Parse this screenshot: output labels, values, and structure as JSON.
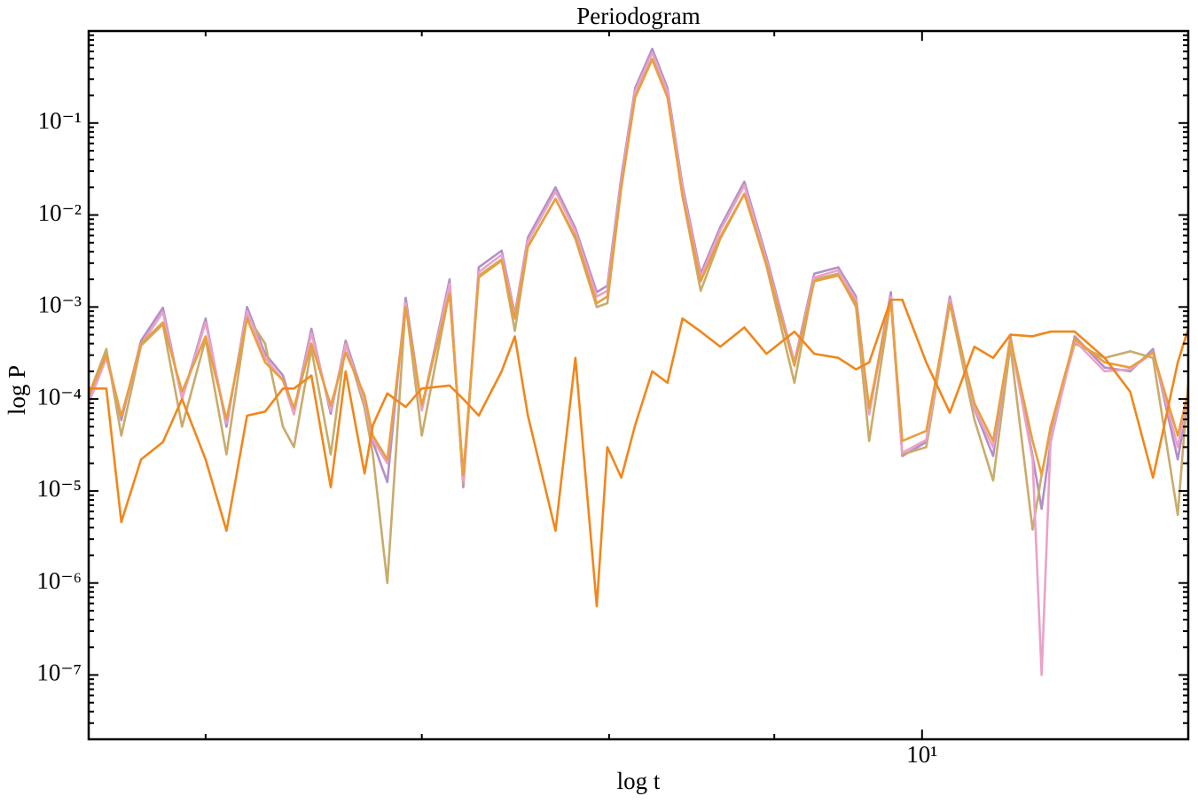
{
  "chart_data": {
    "type": "line",
    "title": "Periodogram",
    "xlabel": "log t",
    "ylabel": "log P",
    "xscale": "log",
    "yscale": "log",
    "xlim": [
      5.52,
      12.09
    ],
    "ylim": [
      2e-08,
      1
    ],
    "xticks": [
      {
        "value": 10,
        "label": "10¹"
      }
    ],
    "yticks": [
      {
        "value": 1e-07,
        "label": "10⁻⁷"
      },
      {
        "value": 1e-06,
        "label": "10⁻⁶"
      },
      {
        "value": 1e-05,
        "label": "10⁻⁵"
      },
      {
        "value": 0.0001,
        "label": "10⁻⁴"
      },
      {
        "value": 0.001,
        "label": "10⁻³"
      },
      {
        "value": 0.01,
        "label": "10⁻²"
      },
      {
        "value": 0.1,
        "label": "10⁻¹"
      }
    ],
    "grid": false,
    "x": [
      5.52,
      5.59,
      5.65,
      5.73,
      5.82,
      5.9,
      6.0,
      6.09,
      6.18,
      6.26,
      6.34,
      6.39,
      6.47,
      6.56,
      6.63,
      6.72,
      6.76,
      6.83,
      6.92,
      7.0,
      7.14,
      7.21,
      7.29,
      7.41,
      7.48,
      7.55,
      7.7,
      7.81,
      7.93,
      7.99,
      8.07,
      8.15,
      8.25,
      8.34,
      8.43,
      8.54,
      8.66,
      8.81,
      8.95,
      9.13,
      9.26,
      9.42,
      9.54,
      9.63,
      9.78,
      9.86,
      10.03,
      10.2,
      10.38,
      10.52,
      10.65,
      10.82,
      10.89,
      10.96,
      11.15,
      11.39,
      11.6,
      11.79,
      12.0,
      12.09
    ],
    "series": [
      {
        "color": "#b38fc8",
        "values": [
          0.0001,
          0.00032,
          5.9e-05,
          0.00043,
          0.00098,
          0.0001,
          0.00075,
          5e-05,
          0.001,
          0.00031,
          0.00018,
          7.3e-05,
          0.00058,
          6.9e-05,
          0.00043,
          0.0001,
          3.4e-05,
          1.25e-05,
          0.00126,
          7.8e-05,
          0.002,
          1.1e-05,
          0.0027,
          0.0041,
          0.00084,
          0.0057,
          0.02,
          0.0072,
          0.00145,
          0.0017,
          0.026,
          0.24,
          0.64,
          0.24,
          0.021,
          0.0023,
          0.0074,
          0.023,
          0.0035,
          0.00025,
          0.0023,
          0.0027,
          0.0013,
          7.3e-05,
          0.00145,
          2.4e-05,
          3.4e-05,
          0.0013,
          7.8e-05,
          2.4e-05,
          0.00048,
          2.4e-05,
          6.4e-06,
          3.4e-05,
          0.00048,
          0.00022,
          0.0002,
          0.00035,
          2.2e-05,
          0.0001
        ]
      },
      {
        "color": "#c9ab6b",
        "values": [
          0.00011,
          0.00035,
          4e-05,
          0.00038,
          0.00065,
          5e-05,
          0.00045,
          2.5e-05,
          0.0008,
          0.0004,
          5e-05,
          3e-05,
          0.00035,
          2.5e-05,
          0.0004,
          8e-05,
          2.5e-05,
          1e-06,
          0.0011,
          4e-05,
          0.0015,
          1.2e-05,
          0.0022,
          0.0033,
          0.00055,
          0.0046,
          0.015,
          0.0055,
          0.001,
          0.0011,
          0.02,
          0.2,
          0.5,
          0.2,
          0.016,
          0.0015,
          0.0055,
          0.017,
          0.0028,
          0.00015,
          0.002,
          0.0023,
          0.001,
          3.5e-05,
          0.0012,
          2.5e-05,
          3e-05,
          0.0011,
          6e-05,
          1.3e-05,
          0.00038,
          3.8e-06,
          1.5e-05,
          4.5e-05,
          0.0004,
          0.00028,
          0.00033,
          0.00028,
          5.5e-06,
          0.00015
        ]
      },
      {
        "color": "#e9a2c9",
        "values": [
          9e-05,
          0.00028,
          6.5e-05,
          0.00039,
          0.00088,
          0.0001,
          0.00068,
          5.5e-05,
          0.0009,
          0.00028,
          0.00016,
          6.8e-05,
          0.00052,
          7.5e-05,
          0.00039,
          9.5e-05,
          3.6e-05,
          2e-05,
          0.0011,
          7.5e-05,
          0.0018,
          1.3e-05,
          0.0024,
          0.0037,
          0.0008,
          0.0052,
          0.018,
          0.0066,
          0.0013,
          0.0015,
          0.023,
          0.22,
          0.58,
          0.22,
          0.019,
          0.0021,
          0.0068,
          0.021,
          0.0032,
          0.00024,
          0.0021,
          0.0025,
          0.0012,
          6.8e-05,
          0.0013,
          2.6e-05,
          3.6e-05,
          0.0012,
          8e-05,
          3e-05,
          0.00045,
          2.2e-05,
          1e-07,
          3.6e-05,
          0.00043,
          0.0002,
          0.00021,
          0.00032,
          3e-05,
          0.00011
        ]
      },
      {
        "color": "#eb9e3c",
        "values": [
          0.00011,
          0.0003,
          6.5e-05,
          0.0004,
          0.00068,
          0.00012,
          0.00048,
          6e-05,
          0.00075,
          0.00025,
          0.00016,
          8e-05,
          0.0004,
          8.5e-05,
          0.00032,
          0.00011,
          4e-05,
          2.2e-05,
          0.001,
          8.5e-05,
          0.0014,
          1.5e-05,
          0.0021,
          0.0032,
          0.00075,
          0.0045,
          0.015,
          0.0058,
          0.0011,
          0.0013,
          0.02,
          0.19,
          0.49,
          0.19,
          0.016,
          0.0019,
          0.0058,
          0.017,
          0.0029,
          0.00023,
          0.0019,
          0.0022,
          0.0011,
          8e-05,
          0.0012,
          3.5e-05,
          4.5e-05,
          0.0011,
          9e-05,
          3.5e-05,
          0.00045,
          3.5e-05,
          1.5e-05,
          5e-05,
          0.00045,
          0.00025,
          0.00022,
          0.00032,
          4e-05,
          0.00012
        ]
      },
      {
        "color": "#f2861a",
        "values": [
          0.00013,
          0.00013,
          4.6e-06,
          2.2e-05,
          3.4e-05,
          0.0001,
          2.2e-05,
          3.7e-06,
          6.6e-05,
          7.3e-05,
          0.00013,
          0.00013,
          0.00018,
          1.1e-05,
          0.0002,
          1.55e-05,
          5.2e-05,
          0.000115,
          8.2e-05,
          0.00013,
          0.00014,
          0.0001,
          6.6e-05,
          0.0002,
          0.00048,
          6.6e-05,
          3.7e-06,
          0.00028,
          5.6e-07,
          3e-05,
          1.4e-05,
          5.2e-05,
          0.0002,
          0.00015,
          0.00075,
          0.00054,
          0.00037,
          0.0006,
          0.00031,
          0.00054,
          0.00031,
          0.00028,
          0.00021,
          0.00025,
          0.0012,
          0.0012,
          0.00025,
          7.1e-05,
          0.00037,
          0.00028,
          0.0005,
          0.00048,
          0.00051,
          0.00054,
          0.00054,
          0.00028,
          0.00012,
          1.4e-05,
          0.00025,
          0.00058
        ]
      }
    ]
  }
}
